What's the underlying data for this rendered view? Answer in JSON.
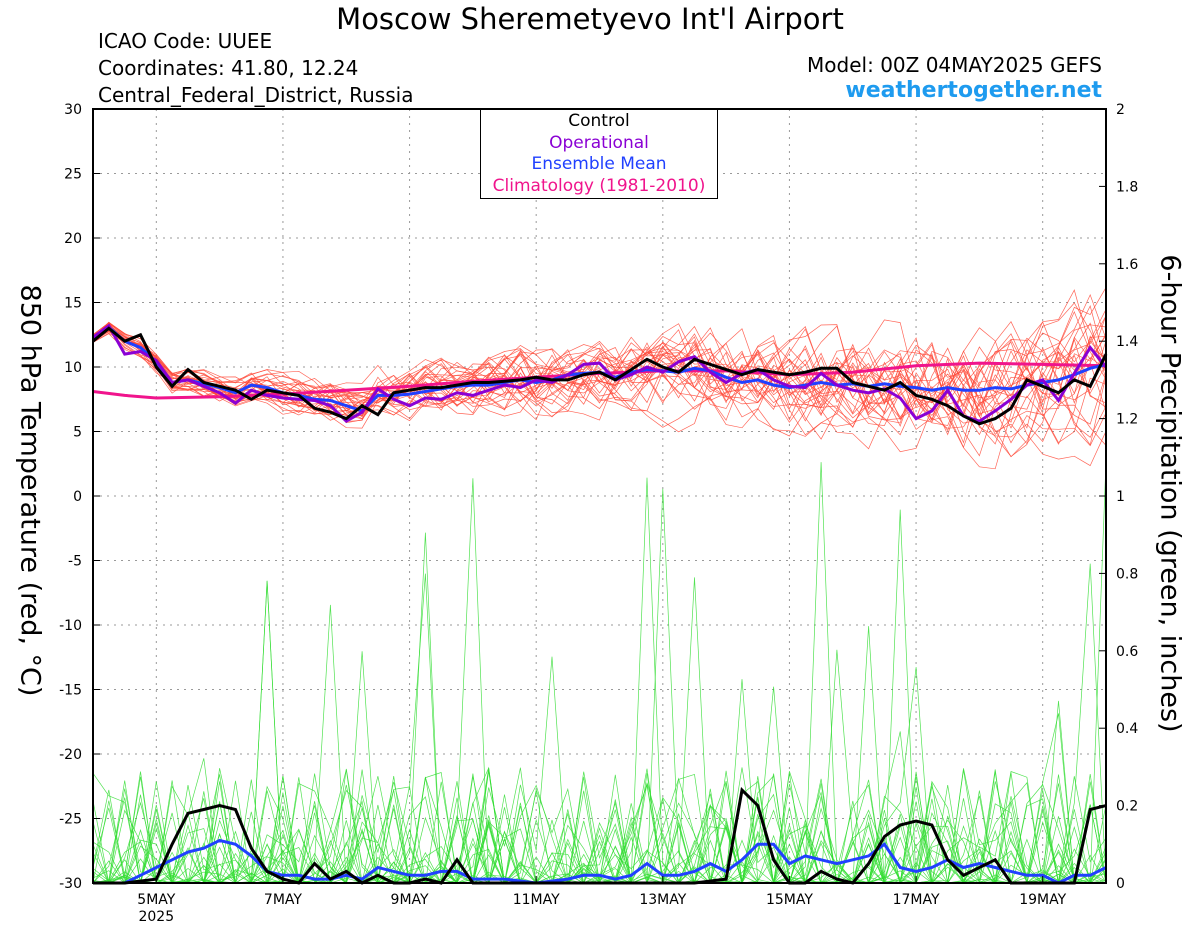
{
  "header": {
    "title": "Moscow Sheremetyevo Int'l Airport",
    "icao": "ICAO Code: UUEE",
    "coords": "Coordinates: 41.80, 12.24",
    "region": "Central_Federal_District, Russia",
    "model": "Model: 00Z 04MAY2025 GEFS",
    "site": "weathertogether.net"
  },
  "legend": {
    "control": "Control",
    "operational": "Operational",
    "mean": "Ensemble Mean",
    "climo": "Climatology (1981-2010)"
  },
  "colors": {
    "control": "#000000",
    "operational": "#8a00d4",
    "mean": "#2040ff",
    "climo": "#f0148c",
    "members_temp": "#ff4a3a",
    "members_precip": "#33dd33",
    "site": "#1e9bef"
  },
  "chart_data": {
    "type": "line",
    "x_unit": "days since 00Z 04MAY2025",
    "x_range": [
      0,
      16
    ],
    "x_ticks": [
      {
        "x": 1,
        "label": "5MAY",
        "sub": "2025"
      },
      {
        "x": 3,
        "label": "7MAY",
        "sub": ""
      },
      {
        "x": 5,
        "label": "9MAY",
        "sub": ""
      },
      {
        "x": 7,
        "label": "11MAY",
        "sub": ""
      },
      {
        "x": 9,
        "label": "13MAY",
        "sub": ""
      },
      {
        "x": 11,
        "label": "15MAY",
        "sub": ""
      },
      {
        "x": 13,
        "label": "17MAY",
        "sub": ""
      },
      {
        "x": 15,
        "label": "19MAY",
        "sub": ""
      }
    ],
    "y_left": {
      "label": "850 hPa Temperature (red, °C)",
      "range": [
        -30,
        30
      ],
      "ticks": [
        "30",
        "25",
        "20",
        "15",
        "10",
        "5",
        "0",
        "-5",
        "-10",
        "-15",
        "-20",
        "-25",
        "-30"
      ]
    },
    "y_right": {
      "label": "6-hour Precipitation (green, inches)",
      "range": [
        0,
        2
      ],
      "ticks": [
        "2",
        "1.8",
        "1.6",
        "1.4",
        "1.2",
        "1",
        "0.8",
        "0.6",
        "0.4",
        "0.2",
        "0"
      ]
    },
    "grid": true,
    "legend_position": "top-center",
    "temp_control": [
      [
        0,
        12
      ],
      [
        0.25,
        13
      ],
      [
        0.5,
        12
      ],
      [
        0.75,
        12.5
      ],
      [
        1,
        10
      ],
      [
        1.25,
        8.5
      ],
      [
        1.5,
        9.8
      ],
      [
        1.75,
        8.8
      ],
      [
        2,
        8.5
      ],
      [
        2.25,
        8.2
      ],
      [
        2.5,
        7.5
      ],
      [
        2.75,
        8.2
      ],
      [
        3,
        8
      ],
      [
        3.25,
        7.8
      ],
      [
        3.5,
        6.8
      ],
      [
        3.75,
        6.5
      ],
      [
        4,
        6
      ],
      [
        4.25,
        7
      ],
      [
        4.5,
        6.3
      ],
      [
        4.75,
        8
      ],
      [
        5,
        8.2
      ],
      [
        5.25,
        8.4
      ],
      [
        5.5,
        8.4
      ],
      [
        5.75,
        8.6
      ],
      [
        6,
        8.8
      ],
      [
        6.25,
        8.8
      ],
      [
        6.5,
        8.9
      ],
      [
        6.75,
        9
      ],
      [
        7,
        9.2
      ],
      [
        7.25,
        9
      ],
      [
        7.5,
        9
      ],
      [
        7.75,
        9.4
      ],
      [
        8,
        9.6
      ],
      [
        8.25,
        9
      ],
      [
        8.5,
        9.8
      ],
      [
        8.75,
        10.6
      ],
      [
        9,
        10
      ],
      [
        9.25,
        9.6
      ],
      [
        9.5,
        10.6
      ],
      [
        9.75,
        10.2
      ],
      [
        10,
        9.8
      ],
      [
        10.25,
        9.4
      ],
      [
        10.5,
        9.8
      ],
      [
        10.75,
        9.6
      ],
      [
        11,
        9.4
      ],
      [
        11.25,
        9.6
      ],
      [
        11.5,
        9.9
      ],
      [
        11.75,
        9.9
      ],
      [
        12,
        8.8
      ],
      [
        12.25,
        8.5
      ],
      [
        12.5,
        8.2
      ],
      [
        12.75,
        8.8
      ],
      [
        13,
        7.8
      ],
      [
        13.25,
        7.5
      ],
      [
        13.5,
        7
      ],
      [
        13.75,
        6.2
      ],
      [
        14,
        5.6
      ],
      [
        14.25,
        6
      ],
      [
        14.5,
        6.8
      ],
      [
        14.75,
        9
      ],
      [
        15,
        8.5
      ],
      [
        15.25,
        8
      ],
      [
        15.5,
        9
      ],
      [
        15.75,
        8.5
      ],
      [
        16,
        11
      ]
    ],
    "temp_operational": [
      [
        0,
        12.3
      ],
      [
        0.25,
        13.2
      ],
      [
        0.5,
        11
      ],
      [
        0.75,
        11.2
      ],
      [
        1,
        10.5
      ],
      [
        1.25,
        8.8
      ],
      [
        1.5,
        9
      ],
      [
        1.75,
        8.5
      ],
      [
        2,
        8
      ],
      [
        2.25,
        7.2
      ],
      [
        2.5,
        8.2
      ],
      [
        2.75,
        7.8
      ],
      [
        3,
        7.6
      ],
      [
        3.25,
        7.5
      ],
      [
        3.5,
        7.4
      ],
      [
        3.75,
        7
      ],
      [
        4,
        5.8
      ],
      [
        4.25,
        6.5
      ],
      [
        4.5,
        8.3
      ],
      [
        4.75,
        7.5
      ],
      [
        5,
        7
      ],
      [
        5.25,
        7.6
      ],
      [
        5.5,
        7.5
      ],
      [
        5.75,
        8
      ],
      [
        6,
        7.8
      ],
      [
        6.25,
        8.2
      ],
      [
        6.5,
        8.6
      ],
      [
        6.75,
        8.4
      ],
      [
        7,
        9
      ],
      [
        7.25,
        8.8
      ],
      [
        7.5,
        9.4
      ],
      [
        7.75,
        10.2
      ],
      [
        8,
        10.3
      ],
      [
        8.25,
        9
      ],
      [
        8.5,
        9.4
      ],
      [
        8.75,
        10
      ],
      [
        9,
        9.6
      ],
      [
        9.25,
        10.4
      ],
      [
        9.5,
        10.8
      ],
      [
        9.75,
        9.6
      ],
      [
        10,
        8.8
      ],
      [
        10.25,
        9.5
      ],
      [
        10.5,
        9.8
      ],
      [
        10.75,
        9
      ],
      [
        11,
        8.5
      ],
      [
        11.25,
        8.4
      ],
      [
        11.5,
        9.5
      ],
      [
        11.75,
        8.6
      ],
      [
        12,
        8.2
      ],
      [
        12.25,
        8
      ],
      [
        12.5,
        8.3
      ],
      [
        12.75,
        7.6
      ],
      [
        13,
        6
      ],
      [
        13.25,
        6.6
      ],
      [
        13.5,
        8.2
      ],
      [
        13.75,
        6.2
      ],
      [
        14,
        5.8
      ],
      [
        14.25,
        6.6
      ],
      [
        14.5,
        7.5
      ],
      [
        14.75,
        8.6
      ],
      [
        15,
        9
      ],
      [
        15.25,
        7.4
      ],
      [
        15.5,
        9.5
      ],
      [
        15.75,
        11.5
      ],
      [
        16,
        10
      ]
    ],
    "temp_mean": [
      [
        0,
        12.2
      ],
      [
        0.25,
        13.1
      ],
      [
        0.5,
        12
      ],
      [
        0.75,
        11.5
      ],
      [
        1,
        10.4
      ],
      [
        1.25,
        8.8
      ],
      [
        1.5,
        9
      ],
      [
        1.75,
        8.7
      ],
      [
        2,
        8.4
      ],
      [
        2.25,
        8
      ],
      [
        2.5,
        8.6
      ],
      [
        2.75,
        8.4
      ],
      [
        3,
        8
      ],
      [
        3.25,
        7.8
      ],
      [
        3.5,
        7.5
      ],
      [
        3.75,
        7.4
      ],
      [
        4,
        7
      ],
      [
        4.25,
        6.6
      ],
      [
        4.5,
        7.8
      ],
      [
        4.75,
        7.8
      ],
      [
        5,
        7.9
      ],
      [
        5.25,
        8.1
      ],
      [
        5.5,
        8.3
      ],
      [
        5.75,
        8.5
      ],
      [
        6,
        8.6
      ],
      [
        6.25,
        8.6
      ],
      [
        6.5,
        8.8
      ],
      [
        6.75,
        9
      ],
      [
        7,
        8.8
      ],
      [
        7.25,
        9
      ],
      [
        7.5,
        9.4
      ],
      [
        7.75,
        9.5
      ],
      [
        8,
        9.6
      ],
      [
        8.25,
        9.2
      ],
      [
        8.5,
        9.6
      ],
      [
        8.75,
        9.8
      ],
      [
        9,
        9.7
      ],
      [
        9.25,
        9.6
      ],
      [
        9.5,
        9.9
      ],
      [
        9.75,
        9.7
      ],
      [
        10,
        9.2
      ],
      [
        10.25,
        8.8
      ],
      [
        10.5,
        9
      ],
      [
        10.75,
        8.6
      ],
      [
        11,
        8.4
      ],
      [
        11.25,
        8.6
      ],
      [
        11.5,
        8.8
      ],
      [
        11.75,
        8.6
      ],
      [
        12,
        8.7
      ],
      [
        12.25,
        8.5
      ],
      [
        12.5,
        8.7
      ],
      [
        12.75,
        8.5
      ],
      [
        13,
        8.4
      ],
      [
        13.25,
        8.2
      ],
      [
        13.5,
        8.4
      ],
      [
        13.75,
        8.2
      ],
      [
        14,
        8.2
      ],
      [
        14.25,
        8.4
      ],
      [
        14.5,
        8.3
      ],
      [
        14.75,
        8.6
      ],
      [
        15,
        8.8
      ],
      [
        15.25,
        9
      ],
      [
        15.5,
        9.4
      ],
      [
        15.75,
        9.9
      ],
      [
        16,
        10.2
      ]
    ],
    "temp_climo": [
      [
        0,
        8.1
      ],
      [
        0.5,
        7.8
      ],
      [
        1,
        7.6
      ],
      [
        2,
        7.7
      ],
      [
        3,
        7.9
      ],
      [
        4,
        8.2
      ],
      [
        5,
        8.5
      ],
      [
        6,
        8.9
      ],
      [
        7,
        9.2
      ],
      [
        8,
        9.5
      ],
      [
        9,
        9.7
      ],
      [
        10,
        9.7
      ],
      [
        11,
        9.4
      ],
      [
        12,
        9.6
      ],
      [
        13,
        10.1
      ],
      [
        14,
        10.3
      ],
      [
        15,
        10.2
      ],
      [
        16,
        10.1
      ]
    ],
    "precip_control": [
      [
        0,
        0
      ],
      [
        0.5,
        0
      ],
      [
        1,
        0.01
      ],
      [
        1.25,
        0.1
      ],
      [
        1.5,
        0.18
      ],
      [
        1.75,
        0.19
      ],
      [
        2,
        0.2
      ],
      [
        2.25,
        0.19
      ],
      [
        2.5,
        0.09
      ],
      [
        2.75,
        0.03
      ],
      [
        3,
        0.01
      ],
      [
        3.25,
        0
      ],
      [
        3.5,
        0.05
      ],
      [
        3.75,
        0.01
      ],
      [
        4,
        0.03
      ],
      [
        4.25,
        0
      ],
      [
        4.5,
        0.02
      ],
      [
        4.75,
        0
      ],
      [
        5,
        0
      ],
      [
        5.25,
        0.01
      ],
      [
        5.5,
        0
      ],
      [
        5.75,
        0.06
      ],
      [
        6,
        0
      ],
      [
        7,
        0
      ],
      [
        8,
        0
      ],
      [
        9,
        0
      ],
      [
        9.5,
        0
      ],
      [
        10,
        0.01
      ],
      [
        10.25,
        0.24
      ],
      [
        10.5,
        0.2
      ],
      [
        10.75,
        0.06
      ],
      [
        11,
        0
      ],
      [
        11.25,
        0
      ],
      [
        11.5,
        0.03
      ],
      [
        11.75,
        0.01
      ],
      [
        12,
        0
      ],
      [
        12.25,
        0.05
      ],
      [
        12.5,
        0.12
      ],
      [
        12.75,
        0.15
      ],
      [
        13,
        0.16
      ],
      [
        13.25,
        0.15
      ],
      [
        13.5,
        0.06
      ],
      [
        13.75,
        0.02
      ],
      [
        14,
        0.04
      ],
      [
        14.25,
        0.06
      ],
      [
        14.5,
        0.0
      ],
      [
        14.75,
        0
      ],
      [
        15,
        0
      ],
      [
        15.25,
        0
      ],
      [
        15.5,
        0
      ],
      [
        15.75,
        0.19
      ],
      [
        16,
        0.2
      ]
    ],
    "precip_mean": [
      [
        0,
        0
      ],
      [
        0.5,
        0
      ],
      [
        0.75,
        0.02
      ],
      [
        1,
        0.04
      ],
      [
        1.25,
        0.06
      ],
      [
        1.5,
        0.08
      ],
      [
        1.75,
        0.09
      ],
      [
        2,
        0.11
      ],
      [
        2.25,
        0.1
      ],
      [
        2.5,
        0.07
      ],
      [
        2.75,
        0.03
      ],
      [
        3,
        0.02
      ],
      [
        3.25,
        0.02
      ],
      [
        3.5,
        0.01
      ],
      [
        3.75,
        0.01
      ],
      [
        4,
        0.02
      ],
      [
        4.25,
        0.01
      ],
      [
        4.5,
        0.04
      ],
      [
        4.75,
        0.03
      ],
      [
        5,
        0.02
      ],
      [
        5.25,
        0.02
      ],
      [
        5.5,
        0.03
      ],
      [
        5.75,
        0.03
      ],
      [
        6,
        0.01
      ],
      [
        6.5,
        0.01
      ],
      [
        7,
        0
      ],
      [
        7.5,
        0.01
      ],
      [
        7.75,
        0.02
      ],
      [
        8,
        0.02
      ],
      [
        8.25,
        0.01
      ],
      [
        8.5,
        0.02
      ],
      [
        8.75,
        0.05
      ],
      [
        9,
        0.02
      ],
      [
        9.25,
        0.02
      ],
      [
        9.5,
        0.03
      ],
      [
        9.75,
        0.05
      ],
      [
        10,
        0.03
      ],
      [
        10.25,
        0.06
      ],
      [
        10.5,
        0.1
      ],
      [
        10.75,
        0.1
      ],
      [
        11,
        0.05
      ],
      [
        11.25,
        0.07
      ],
      [
        11.5,
        0.06
      ],
      [
        11.75,
        0.05
      ],
      [
        12,
        0.06
      ],
      [
        12.25,
        0.07
      ],
      [
        12.5,
        0.1
      ],
      [
        12.75,
        0.04
      ],
      [
        13,
        0.03
      ],
      [
        13.25,
        0.04
      ],
      [
        13.5,
        0.06
      ],
      [
        13.75,
        0.04
      ],
      [
        14,
        0.05
      ],
      [
        14.25,
        0.04
      ],
      [
        14.5,
        0.03
      ],
      [
        14.75,
        0.02
      ],
      [
        15,
        0.02
      ],
      [
        15.25,
        0.0
      ],
      [
        15.5,
        0.02
      ],
      [
        15.75,
        0.02
      ],
      [
        16,
        0.04
      ]
    ]
  }
}
